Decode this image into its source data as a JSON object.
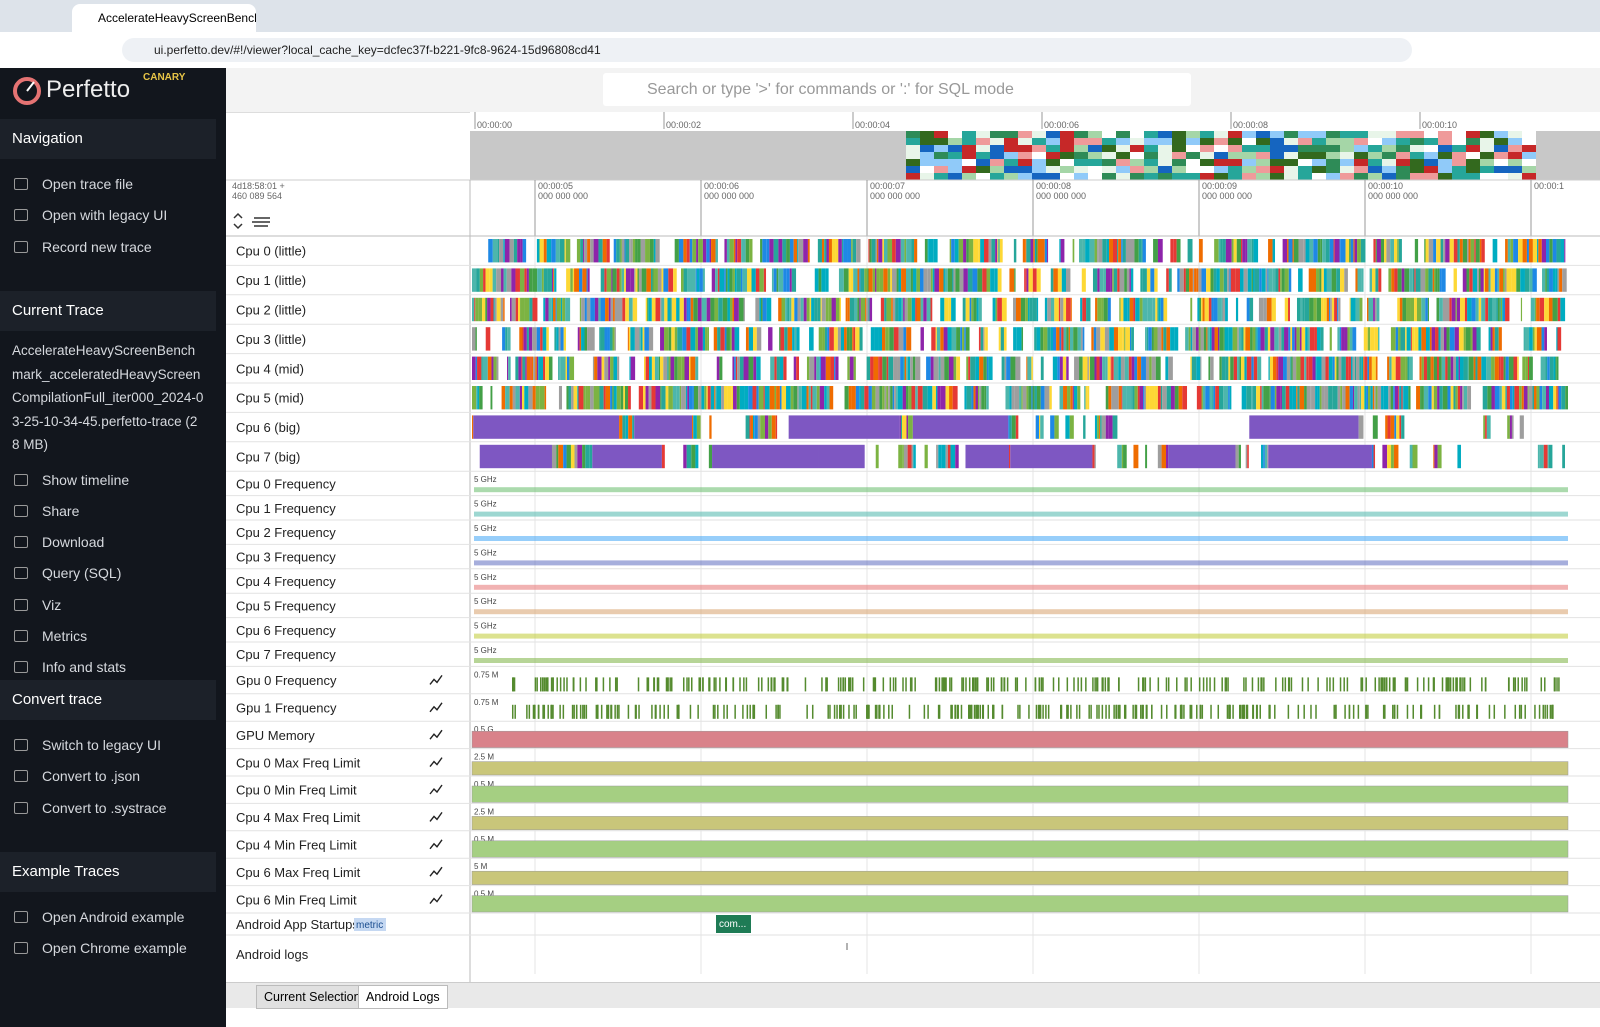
{
  "browser": {
    "tab_title": "AccelerateHeavyScreenBench",
    "url": "ui.perfetto.dev/#!/viewer?local_cache_key=dcfec37f-b221-9fc8-9624-15d96808cd41"
  },
  "sidebar": {
    "brand": "Perfetto",
    "badge": "CANARY",
    "navigation": {
      "title": "Navigation",
      "items": [
        "Open trace file",
        "Open with legacy UI",
        "Record new trace"
      ]
    },
    "current_trace": {
      "title": "Current Trace",
      "trace_name": "AccelerateHeavyScreenBenchmark_acceleratedHeavyScreenCompilationFull_iter000_2024-03-25-10-34-45.perfetto-trace (28 MB)",
      "items": [
        "Show timeline",
        "Share",
        "Download",
        "Query (SQL)",
        "Viz",
        "Metrics",
        "Info and stats"
      ]
    },
    "convert_trace": {
      "title": "Convert trace",
      "items": [
        "Switch to legacy UI",
        "Convert to .json",
        "Convert to .systrace"
      ]
    },
    "example_traces": {
      "title": "Example Traces",
      "items": [
        "Open Android example",
        "Open Chrome example"
      ]
    }
  },
  "search": {
    "placeholder": "Search or type '>' for commands or ':' for SQL mode"
  },
  "overview": {
    "ticks": [
      "00:00:00",
      "00:00:02",
      "00:00:04",
      "00:00:06",
      "00:00:08",
      "00:00:10"
    ]
  },
  "ruler": {
    "origin": [
      "4d18:58:01 +",
      "460 089 564"
    ],
    "ticks": [
      [
        "00:00:05",
        "000 000 000"
      ],
      [
        "00:00:06",
        "000 000 000"
      ],
      [
        "00:00:07",
        "000 000 000"
      ],
      [
        "00:00:08",
        "000 000 000"
      ],
      [
        "00:00:09",
        "000 000 000"
      ],
      [
        "00:00:10",
        "000 000 000"
      ],
      [
        "00:00:1",
        ""
      ]
    ]
  },
  "tracks": {
    "cpu": [
      "Cpu 0 (little)",
      "Cpu 1 (little)",
      "Cpu 2 (little)",
      "Cpu 3 (little)",
      "Cpu 4 (mid)",
      "Cpu 5 (mid)",
      "Cpu 6 (big)",
      "Cpu 7 (big)"
    ],
    "frequency": [
      [
        "Cpu 0 Frequency",
        "5 GHz"
      ],
      [
        "Cpu 1 Frequency",
        "5 GHz"
      ],
      [
        "Cpu 2 Frequency",
        "5 GHz"
      ],
      [
        "Cpu 3 Frequency",
        "5 GHz"
      ],
      [
        "Cpu 4 Frequency",
        "5 GHz"
      ],
      [
        "Cpu 5 Frequency",
        "5 GHz"
      ],
      [
        "Cpu 6 Frequency",
        "5 GHz"
      ],
      [
        "Cpu 7 Frequency",
        "5 GHz"
      ]
    ],
    "counters": [
      [
        "Gpu 0 Frequency",
        "0.75 M"
      ],
      [
        "Gpu 1 Frequency",
        "0.75 M"
      ],
      [
        "GPU Memory",
        "0.5 G"
      ],
      [
        "Cpu 0 Max Freq Limit",
        "2.5 M"
      ],
      [
        "Cpu 0 Min Freq Limit",
        "0.5 M"
      ],
      [
        "Cpu 4 Max Freq Limit",
        "2.5 M"
      ],
      [
        "Cpu 4 Min Freq Limit",
        "0.5 M"
      ],
      [
        "Cpu 6 Max Freq Limit",
        "5 M"
      ],
      [
        "Cpu 6 Min Freq Limit",
        "0.5 M"
      ]
    ],
    "startups": {
      "name": "Android App Startups",
      "tag": "metric",
      "slice": "com..."
    },
    "logs": {
      "name": "Android logs"
    }
  },
  "bottom_tabs": [
    "Current Selection",
    "Android Logs"
  ]
}
